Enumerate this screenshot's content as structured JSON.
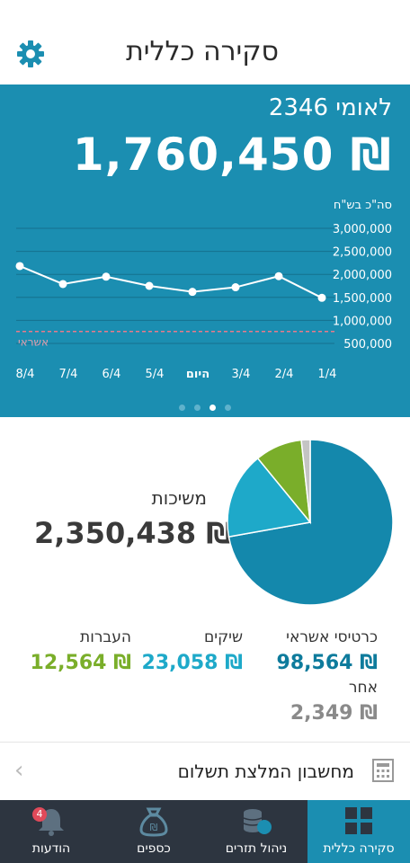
{
  "header": {
    "title": "סקירה כללית",
    "settings_icon": "gear-icon"
  },
  "hero": {
    "account": "לאומי 2346",
    "balance": "1,760,450 ₪",
    "pagination": {
      "count": 4,
      "active": 2
    }
  },
  "chart_data": {
    "type": "line",
    "ylabel": "סה\"כ בש\"ח",
    "categories": [
      "8/4",
      "7/4",
      "6/4",
      "5/4",
      "היום",
      "3/4",
      "2/4",
      "1/4"
    ],
    "values": [
      2180000,
      1790000,
      1950000,
      1750000,
      1620000,
      1720000,
      1960000,
      1490000
    ],
    "yticks": [
      "3,000,000",
      "2,500,000",
      "2,000,000",
      "1,500,000",
      "1,000,000",
      "500,000"
    ],
    "ylim": [
      500000,
      3000000
    ],
    "credit_line": {
      "label": "אשראי",
      "value": 760000
    }
  },
  "loans": {
    "label": "משיכות",
    "value": "2,350,438 ₪"
  },
  "pie": {
    "slices": [
      {
        "name": "כרטיסי אשראי",
        "value": 98564,
        "color": "#1488ac"
      },
      {
        "name": "שיקים",
        "value": 23058,
        "color": "#1ea9c9"
      },
      {
        "name": "העברות",
        "value": 12564,
        "color": "#7aae2a"
      },
      {
        "name": "אחר",
        "value": 2349,
        "color": "#c4c4c4"
      }
    ]
  },
  "stats": {
    "credit_cards": {
      "label": "כרטיסי אשראי",
      "value": "98,564 ₪",
      "color": "#0e7b9c"
    },
    "checks": {
      "label": "שיקים",
      "value": "23,058 ₪",
      "color": "#1ea9c9"
    },
    "transfers": {
      "label": "העברות",
      "value": "12,564 ₪",
      "color": "#7aae2a"
    },
    "other": {
      "label": "אחר",
      "value": "2,349 ₪",
      "color": "#8a8a8a"
    }
  },
  "calc": {
    "label": "מחשבון המלצת תשלום"
  },
  "tabs": [
    {
      "label": "סקירה כללית",
      "icon": "dashboard-icon",
      "active": true
    },
    {
      "label": "ניהול תזרים",
      "icon": "coins-icon",
      "active": false
    },
    {
      "label": "כספים",
      "icon": "money-bag-icon",
      "active": false
    },
    {
      "label": "הודעות",
      "icon": "bell-icon",
      "active": false,
      "badge": "4"
    }
  ]
}
